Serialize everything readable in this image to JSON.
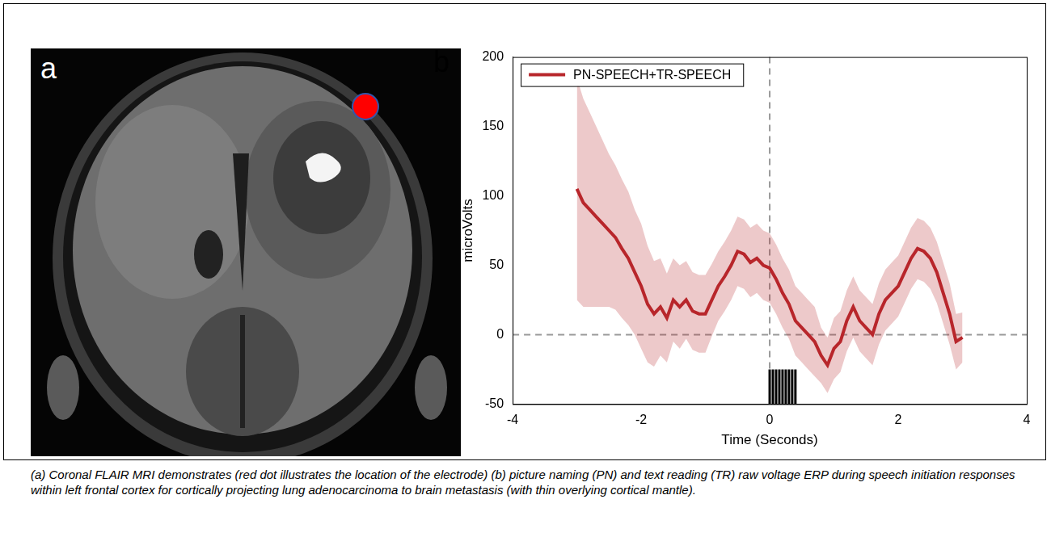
{
  "chart_data": {
    "type": "line",
    "x_label": "Time (Seconds)",
    "y_label": "microVolts",
    "xlim": [
      -4,
      4
    ],
    "xticks": [
      -4,
      -2,
      0,
      2,
      4
    ],
    "ylim": [
      -50,
      200
    ],
    "yticks": [
      -50,
      0,
      50,
      100,
      150,
      200
    ],
    "grid": false,
    "legend": "upper left",
    "x": [
      -3.0,
      -2.9,
      -2.8,
      -2.7,
      -2.6,
      -2.5,
      -2.4,
      -2.3,
      -2.2,
      -2.1,
      -2.0,
      -1.9,
      -1.8,
      -1.7,
      -1.6,
      -1.5,
      -1.4,
      -1.3,
      -1.2,
      -1.1,
      -1.0,
      -0.9,
      -0.8,
      -0.7,
      -0.6,
      -0.5,
      -0.4,
      -0.3,
      -0.2,
      -0.1,
      0.0,
      0.1,
      0.2,
      0.3,
      0.4,
      0.5,
      0.6,
      0.7,
      0.8,
      0.9,
      1.0,
      1.1,
      1.2,
      1.3,
      1.4,
      1.5,
      1.6,
      1.7,
      1.8,
      1.9,
      2.0,
      2.1,
      2.2,
      2.3,
      2.4,
      2.5,
      2.6,
      2.7,
      2.8,
      2.9,
      3.0
    ],
    "series": [
      {
        "name": "PN-SPEECH+TR-SPEECH",
        "color": "#b8262b",
        "values": [
          105,
          95,
          90,
          85,
          80,
          75,
          70,
          62,
          55,
          45,
          35,
          22,
          15,
          20,
          12,
          25,
          20,
          25,
          17,
          15,
          15,
          25,
          35,
          42,
          50,
          60,
          58,
          52,
          55,
          50,
          48,
          40,
          30,
          22,
          10,
          5,
          0,
          -5,
          -15,
          -22,
          -10,
          -5,
          10,
          20,
          10,
          5,
          0,
          15,
          25,
          30,
          35,
          45,
          55,
          62,
          60,
          55,
          45,
          30,
          15,
          -5,
          -2
        ],
        "band_upper": [
          185,
          170,
          160,
          150,
          140,
          130,
          122,
          112,
          103,
          90,
          80,
          64,
          53,
          55,
          44,
          55,
          50,
          53,
          45,
          43,
          43,
          51,
          60,
          67,
          75,
          85,
          83,
          77,
          80,
          75,
          73,
          65,
          55,
          47,
          35,
          30,
          25,
          20,
          5,
          -2,
          12,
          17,
          32,
          42,
          32,
          27,
          22,
          37,
          47,
          52,
          57,
          67,
          77,
          84,
          82,
          77,
          67,
          52,
          37,
          15,
          16
        ],
        "band_lower": [
          25,
          20,
          20,
          20,
          20,
          20,
          18,
          12,
          7,
          0,
          -10,
          -20,
          -23,
          -15,
          -20,
          -5,
          -10,
          -3,
          -11,
          -13,
          -13,
          -1,
          10,
          17,
          25,
          35,
          33,
          27,
          30,
          25,
          23,
          15,
          5,
          -3,
          -15,
          -20,
          -25,
          -30,
          -35,
          -42,
          -32,
          -27,
          -12,
          -2,
          -12,
          -17,
          -22,
          -7,
          3,
          8,
          13,
          23,
          33,
          40,
          38,
          33,
          23,
          8,
          -7,
          -25,
          -20
        ]
      }
    ],
    "vline": 0,
    "hline": 0,
    "onset_marks": {
      "x": [
        0.0,
        0.05,
        0.1,
        0.15,
        0.2,
        0.25,
        0.3,
        0.35,
        0.4
      ],
      "y_from": -50,
      "y_to": -25,
      "color": "#000000"
    }
  },
  "figure": {
    "panel_labels": [
      "a",
      "b"
    ],
    "caption": "(a) Coronal FLAIR MRI demonstrates (red dot illustrates the location of the electrode) (b) picture naming (PN) and text reading (TR) raw voltage ERP during speech initiation responses within left frontal cortex for cortically projecting lung adenocarcinoma to brain metastasis (with thin overlying cortical mantle)."
  }
}
